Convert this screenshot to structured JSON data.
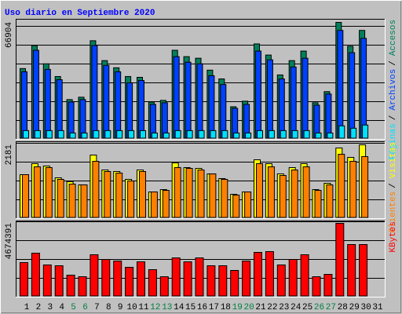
{
  "chart_data": {
    "type": "bar",
    "title": "Uso diario en Septiembre 2020",
    "categories": [
      "1",
      "2",
      "3",
      "4",
      "5",
      "6",
      "7",
      "8",
      "9",
      "10",
      "11",
      "12",
      "13",
      "14",
      "15",
      "16",
      "17",
      "18",
      "19",
      "20",
      "21",
      "22",
      "23",
      "24",
      "25",
      "26",
      "27",
      "28",
      "29",
      "30",
      "31"
    ],
    "category_colors": [
      "#000000",
      "#000000",
      "#000000",
      "#000000",
      "#008040",
      "#008040",
      "#000000",
      "#000000",
      "#000000",
      "#000000",
      "#000000",
      "#008040",
      "#008040",
      "#000000",
      "#000000",
      "#000000",
      "#000000",
      "#000000",
      "#008040",
      "#008040",
      "#000000",
      "#000000",
      "#000000",
      "#000000",
      "#000000",
      "#008040",
      "#008040",
      "#000000",
      "#000000",
      "#000000",
      "#000000"
    ],
    "legend_separator": "/",
    "panels": [
      {
        "ylim": [
          0,
          66904
        ],
        "yticks": [
          66904
        ],
        "series": [
          {
            "name": "Accesos",
            "color": "#00805c",
            "values": [
              40304,
              53586,
              43052,
              35724,
              22442,
              23816,
              56334,
              44884,
              40762,
              35724,
              35266,
              21068,
              21984,
              50838,
              47174,
              46258,
              39388,
              34350,
              18320,
              21526,
              54502,
              48090,
              36640,
              44884,
              50380,
              20610,
              27022,
              66904,
              53128,
              62288,
              0
            ]
          },
          {
            "name": "Archivos",
            "color": "#0040ff",
            "values": [
              38472,
              50838,
              39846,
              33892,
              21068,
              22442,
              53586,
              42136,
              38472,
              32060,
              33434,
              19694,
              20610,
              47174,
              43968,
              43052,
              36182,
              31144,
              17404,
              19694,
              50380,
              45342,
              34350,
              41220,
              46258,
              19236,
              25648,
              62288,
              49464,
              57708,
              0
            ]
          },
          {
            "name": "Páginas",
            "color": "#00e0ff",
            "values": [
              4580,
              4580,
              4580,
              4580,
              3206,
              3206,
              4580,
              4580,
              4580,
              4580,
              4580,
              3206,
              3206,
              4580,
              4580,
              4580,
              4580,
              4580,
              3206,
              3206,
              4580,
              4580,
              4580,
              4580,
              4580,
              3206,
              3206,
              7328,
              5954,
              7786,
              0
            ]
          }
        ]
      },
      {
        "ylim": [
          0,
          2181
        ],
        "yticks": [
          2181
        ],
        "series": [
          {
            "name": "Visitas",
            "color": "#ffff00",
            "values": [
              1290,
              1618,
              1548,
              1196,
              1079,
              985,
              1876,
              1430,
              1384,
              1149,
              1430,
              774,
              844,
              1642,
              1501,
              1477,
              1313,
              1173,
              704,
              774,
              1735,
              1618,
              1313,
              1501,
              1618,
              844,
              1032,
              2087,
              1806,
              2181,
              0
            ]
          },
          {
            "name": "Clientes",
            "color": "#ff8000",
            "values": [
              1290,
              1524,
              1501,
              1149,
              1008,
              985,
              1688,
              1384,
              1337,
              1102,
              1384,
              774,
              821,
              1501,
              1477,
              1430,
              1313,
              1149,
              680,
              774,
              1618,
              1524,
              1266,
              1430,
              1524,
              821,
              985,
              1899,
              1688,
              1829,
              0
            ]
          }
        ]
      },
      {
        "ylim": [
          0,
          4674391
        ],
        "yticks": [
          4674391
        ],
        "series": [
          {
            "name": "KBytes",
            "color": "#ff0000",
            "values": [
              2161266,
              2764410,
              2010480,
              1960218,
              1357074,
              1256550,
              2663886,
              2362314,
              2261790,
              1859694,
              2211528,
              1708908,
              1256550,
              2462838,
              2211528,
              2462838,
              1960218,
              1960218,
              1658646,
              2261790,
              2814672,
              2864934,
              2010480,
              2362314,
              2663886,
              1256550,
              1407336,
              4674391,
              3317292,
              3317292,
              0
            ]
          }
        ]
      }
    ]
  }
}
